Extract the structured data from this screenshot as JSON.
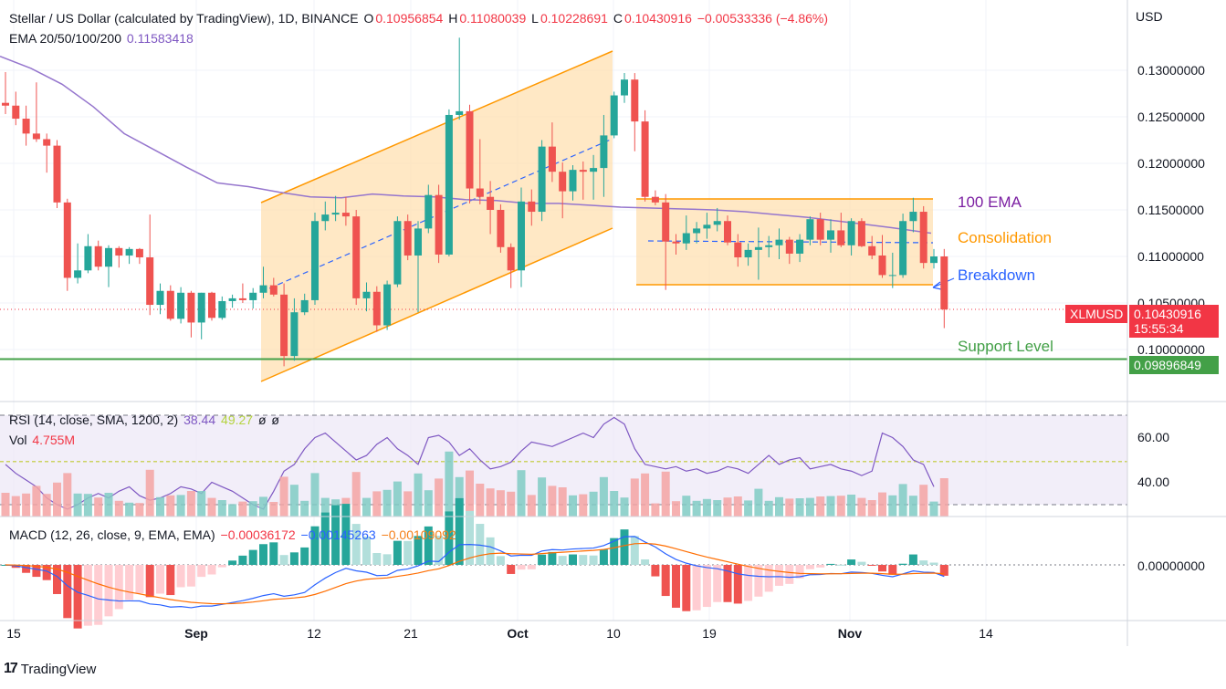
{
  "header": {
    "symbol_title": "Stellar / US Dollar (calculated by TradingView), 1D, BINANCE",
    "o_label": "O",
    "o_value": "0.10956854",
    "h_label": "H",
    "h_value": "0.11080039",
    "l_label": "L",
    "l_value": "0.10228691",
    "c_label": "C",
    "c_value": "0.10430916",
    "change": "−0.00533336 (−4.86%)",
    "ema_label": "EMA 20/50/100/200",
    "ema_value": "0.11583418"
  },
  "currency": "USD",
  "price_axis": {
    "ticks": [
      {
        "value": 0.13,
        "label": "0.13000000"
      },
      {
        "value": 0.125,
        "label": "0.12500000"
      },
      {
        "value": 0.12,
        "label": "0.12000000"
      },
      {
        "value": 0.115,
        "label": "0.11500000"
      },
      {
        "value": 0.11,
        "label": "0.11000000"
      },
      {
        "value": 0.105,
        "label": "0.10500000"
      },
      {
        "value": 0.1,
        "label": "0.10000000"
      }
    ]
  },
  "price_tags": {
    "symbol": "XLMUSD",
    "last_price": "0.10430916",
    "countdown": "15:55:34",
    "support_price": "0.09896849",
    "colors": {
      "last": "#f23645",
      "support": "#43a047"
    }
  },
  "annotations": {
    "ema100": "100 EMA",
    "consolidation": "Consolidation",
    "breakdown": "Breakdown",
    "support": "Support Level"
  },
  "rsi_panel": {
    "label": "RSI (14, close, SMA, 1200, 2)",
    "rsi_value": "38.44",
    "rsi_ma_value": "49.27",
    "extra1": "ø",
    "extra2": "ø",
    "vol_label": "Vol",
    "vol_value": "4.755M",
    "ticks": [
      {
        "value": 60,
        "label": "60.00"
      },
      {
        "value": 40,
        "label": "40.00"
      }
    ]
  },
  "macd_panel": {
    "label": "MACD (12, 26, close, 9, EMA, EMA)",
    "hist_value": "−0.00036172",
    "macd_value": "−0.00145263",
    "signal_value": "−0.00109092",
    "tick_label": "0.00000000"
  },
  "time_axis": [
    {
      "label": "15",
      "bold": false
    },
    {
      "label": "Sep",
      "bold": true
    },
    {
      "label": "12",
      "bold": false
    },
    {
      "label": "21",
      "bold": false
    },
    {
      "label": "Oct",
      "bold": true
    },
    {
      "label": "10",
      "bold": false
    },
    {
      "label": "19",
      "bold": false
    },
    {
      "label": "Nov",
      "bold": true
    },
    {
      "label": "14",
      "bold": false
    }
  ],
  "brand": "TradingView",
  "chart_data": {
    "type": "candlestick",
    "symbol": "XLMUSD",
    "ylim": [
      0.0945,
      0.1345
    ],
    "colors": {
      "up": "#26a69a",
      "down": "#ef5350",
      "ema": "#9575cd",
      "support": "#43a047",
      "channel": "#ff9800"
    },
    "candles": [
      [
        0.1265,
        0.1298,
        0.1253,
        0.1262
      ],
      [
        0.1262,
        0.1277,
        0.1241,
        0.1248
      ],
      [
        0.1248,
        0.1262,
        0.1219,
        0.1232
      ],
      [
        0.1232,
        0.1287,
        0.1223,
        0.1226
      ],
      [
        0.1226,
        0.1232,
        0.119,
        0.1219
      ],
      [
        0.1219,
        0.1225,
        0.1152,
        0.1158
      ],
      [
        0.1158,
        0.1162,
        0.1063,
        0.1077
      ],
      [
        0.1077,
        0.1114,
        0.1071,
        0.1085
      ],
      [
        0.1085,
        0.1124,
        0.1082,
        0.1111
      ],
      [
        0.1111,
        0.1117,
        0.1085,
        0.1089
      ],
      [
        0.1089,
        0.1112,
        0.1067,
        0.1109
      ],
      [
        0.1109,
        0.1111,
        0.1088,
        0.1101
      ],
      [
        0.1101,
        0.111,
        0.1092,
        0.1108
      ],
      [
        0.1108,
        0.1109,
        0.1092,
        0.1099
      ],
      [
        0.1099,
        0.1145,
        0.1037,
        0.1048
      ],
      [
        0.1048,
        0.1071,
        0.1038,
        0.1063
      ],
      [
        0.1063,
        0.1069,
        0.1031,
        0.1033
      ],
      [
        0.1033,
        0.1067,
        0.1028,
        0.1061
      ],
      [
        0.1061,
        0.1063,
        0.1013,
        0.1029
      ],
      [
        0.1029,
        0.1061,
        0.1011,
        0.1061
      ],
      [
        0.1061,
        0.1062,
        0.1031,
        0.1034
      ],
      [
        0.1034,
        0.1057,
        0.1032,
        0.1052
      ],
      [
        0.1052,
        0.1059,
        0.1045,
        0.1055
      ],
      [
        0.1055,
        0.1071,
        0.105,
        0.1053
      ],
      [
        0.1053,
        0.1066,
        0.1044,
        0.1061
      ],
      [
        0.1061,
        0.1089,
        0.1055,
        0.1069
      ],
      [
        0.1069,
        0.1077,
        0.1057,
        0.1059
      ],
      [
        0.1059,
        0.1071,
        0.0982,
        0.0993
      ],
      [
        0.0993,
        0.1055,
        0.0988,
        0.104
      ],
      [
        0.104,
        0.106,
        0.1037,
        0.1053
      ],
      [
        0.1053,
        0.1147,
        0.1048,
        0.1138
      ],
      [
        0.1138,
        0.1159,
        0.1128,
        0.1145
      ],
      [
        0.1145,
        0.1165,
        0.1138,
        0.1147
      ],
      [
        0.1147,
        0.1164,
        0.1133,
        0.1143
      ],
      [
        0.1143,
        0.115,
        0.1048,
        0.1055
      ],
      [
        0.1055,
        0.1072,
        0.1041,
        0.1062
      ],
      [
        0.1062,
        0.1068,
        0.1019,
        0.1026
      ],
      [
        0.1026,
        0.1074,
        0.1021,
        0.107
      ],
      [
        0.107,
        0.1143,
        0.1067,
        0.1138
      ],
      [
        0.1138,
        0.1145,
        0.1096,
        0.1101
      ],
      [
        0.1101,
        0.1138,
        0.104,
        0.113
      ],
      [
        0.113,
        0.1177,
        0.1125,
        0.1166
      ],
      [
        0.1166,
        0.1177,
        0.1093,
        0.1102
      ],
      [
        0.1102,
        0.1258,
        0.11,
        0.1252
      ],
      [
        0.1252,
        0.1335,
        0.1247,
        0.1256
      ],
      [
        0.1256,
        0.1263,
        0.1157,
        0.1173
      ],
      [
        0.1173,
        0.1226,
        0.1156,
        0.1164
      ],
      [
        0.1164,
        0.1181,
        0.1124,
        0.115
      ],
      [
        0.115,
        0.1156,
        0.1104,
        0.111
      ],
      [
        0.111,
        0.1114,
        0.1066,
        0.1085
      ],
      [
        0.1085,
        0.1174,
        0.1067,
        0.1159
      ],
      [
        0.1159,
        0.1172,
        0.1133,
        0.1148
      ],
      [
        0.1148,
        0.1225,
        0.1138,
        0.1218
      ],
      [
        0.1218,
        0.1244,
        0.118,
        0.1191
      ],
      [
        0.1191,
        0.1201,
        0.1141,
        0.117
      ],
      [
        0.117,
        0.1198,
        0.116,
        0.1193
      ],
      [
        0.1193,
        0.1202,
        0.1161,
        0.1191
      ],
      [
        0.1191,
        0.1209,
        0.1161,
        0.1195
      ],
      [
        0.1195,
        0.1252,
        0.1164,
        0.123
      ],
      [
        0.123,
        0.1277,
        0.1227,
        0.1273
      ],
      [
        0.1273,
        0.1297,
        0.1265,
        0.129
      ],
      [
        0.129,
        0.1297,
        0.1213,
        0.1245
      ],
      [
        0.1245,
        0.1257,
        0.1159,
        0.1164
      ],
      [
        0.1164,
        0.1171,
        0.1155,
        0.1158
      ],
      [
        0.1158,
        0.1167,
        0.1064,
        0.1116
      ],
      [
        0.1116,
        0.1124,
        0.1102,
        0.1114
      ],
      [
        0.1114,
        0.1144,
        0.1107,
        0.1125
      ],
      [
        0.1125,
        0.1137,
        0.1114,
        0.113
      ],
      [
        0.113,
        0.1147,
        0.1119,
        0.1134
      ],
      [
        0.1134,
        0.1152,
        0.1127,
        0.1138
      ],
      [
        0.1138,
        0.1144,
        0.1112,
        0.1115
      ],
      [
        0.1115,
        0.1124,
        0.1089,
        0.1099
      ],
      [
        0.1099,
        0.1114,
        0.109,
        0.1107
      ],
      [
        0.1107,
        0.1131,
        0.1075,
        0.111
      ],
      [
        0.111,
        0.1122,
        0.1099,
        0.1112
      ],
      [
        0.1112,
        0.113,
        0.1097,
        0.1118
      ],
      [
        0.1118,
        0.1121,
        0.1092,
        0.1103
      ],
      [
        0.1103,
        0.1124,
        0.1094,
        0.1118
      ],
      [
        0.1118,
        0.1143,
        0.1112,
        0.114
      ],
      [
        0.114,
        0.1147,
        0.1112,
        0.1118
      ],
      [
        0.1118,
        0.114,
        0.1104,
        0.1128
      ],
      [
        0.1128,
        0.1147,
        0.111,
        0.1112
      ],
      [
        0.1112,
        0.1141,
        0.1101,
        0.1138
      ],
      [
        0.1138,
        0.1141,
        0.111,
        0.1111
      ],
      [
        0.1111,
        0.1122,
        0.1097,
        0.1101
      ],
      [
        0.1101,
        0.1123,
        0.1077,
        0.108
      ],
      [
        0.108,
        0.1104,
        0.1066,
        0.108
      ],
      [
        0.108,
        0.1146,
        0.1077,
        0.1138
      ],
      [
        0.1138,
        0.1163,
        0.1126,
        0.1148
      ],
      [
        0.1148,
        0.1154,
        0.1087,
        0.1093
      ],
      [
        0.1093,
        0.1108,
        0.1087,
        0.11
      ],
      [
        0.11,
        0.1108,
        0.1023,
        0.1043
      ]
    ],
    "ema100": [
      [
        0,
        0.1315
      ],
      [
        10,
        0.1302
      ],
      [
        20,
        0.1285
      ],
      [
        30,
        0.1261
      ],
      [
        40,
        0.1232
      ],
      [
        50,
        0.1214
      ],
      [
        60,
        0.1196
      ],
      [
        70,
        0.1179
      ],
      [
        80,
        0.1175
      ],
      [
        90,
        0.1169
      ],
      [
        100,
        0.1164
      ],
      [
        110,
        0.1163
      ],
      [
        120,
        0.1167
      ],
      [
        130,
        0.1165
      ],
      [
        140,
        0.1164
      ],
      [
        150,
        0.1161
      ],
      [
        160,
        0.116
      ],
      [
        170,
        0.1157
      ],
      [
        180,
        0.1157
      ],
      [
        190,
        0.1155
      ],
      [
        200,
        0.1153
      ],
      [
        210,
        0.1152
      ],
      [
        220,
        0.1151
      ],
      [
        230,
        0.115
      ],
      [
        240,
        0.1148
      ],
      [
        250,
        0.1145
      ],
      [
        260,
        0.1142
      ],
      [
        270,
        0.1138
      ],
      [
        280,
        0.1134
      ],
      [
        287,
        0.1131
      ],
      [
        300,
        0.1125
      ]
    ],
    "support_level": 0.09896849,
    "last_price": 0.10430916,
    "rsi": [
      48,
      44,
      41,
      38,
      33,
      30,
      28,
      30,
      33,
      35,
      33,
      36,
      38,
      34,
      32,
      33,
      35,
      38,
      37,
      35,
      40,
      38,
      36,
      33,
      30,
      28,
      36,
      45,
      48,
      55,
      60,
      62,
      58,
      54,
      50,
      52,
      57,
      60,
      55,
      52,
      48,
      60,
      61,
      58,
      52,
      55,
      50,
      46,
      47,
      49,
      54,
      58,
      57,
      56,
      58,
      60,
      62,
      60,
      66,
      69,
      66,
      55,
      48,
      47,
      46,
      47,
      45,
      46,
      44,
      45,
      47,
      46,
      44,
      48,
      52,
      48,
      50,
      51,
      46,
      47,
      48,
      46,
      45,
      43,
      45,
      62,
      60,
      56,
      50,
      48,
      38
    ],
    "rsi_ma": 49.27,
    "volume_note": "volume bars in pane; last Vol 4.755M",
    "macd": [],
    "channels": [
      {
        "name": "ascending channel",
        "start_index": 28,
        "end_index": 63
      },
      {
        "name": "consolidation range",
        "start_index": 64,
        "end_index": 90,
        "top": 0.1164,
        "bottom": 0.1074
      }
    ]
  }
}
